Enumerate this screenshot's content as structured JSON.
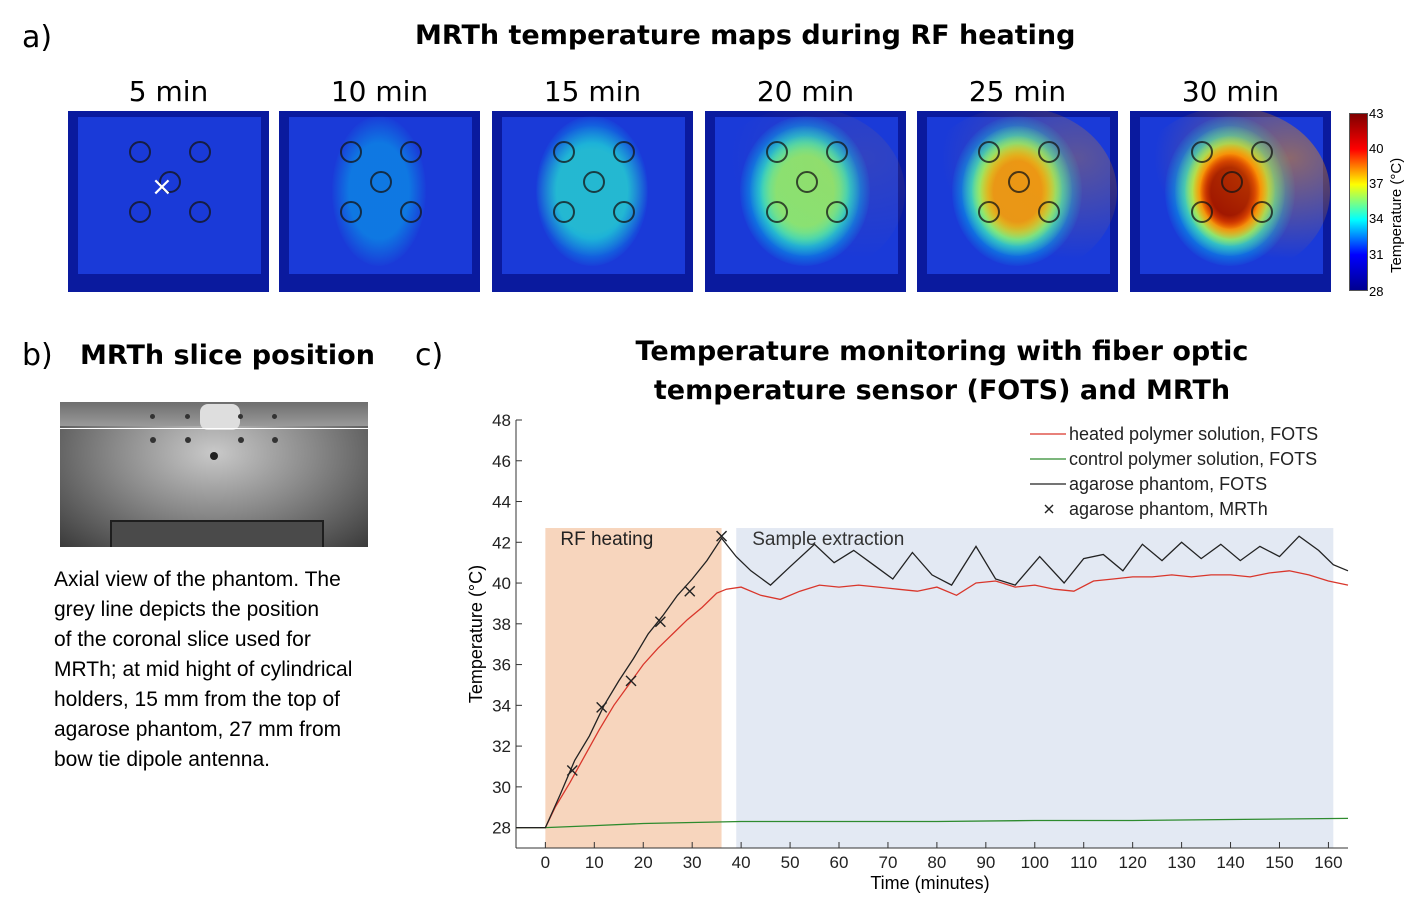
{
  "panel_a": {
    "letter": "a)",
    "title": "MRTh temperature maps during RF heating",
    "maps": [
      {
        "label": "5 min",
        "heat": 0.0
      },
      {
        "label": "10 min",
        "heat": 0.22
      },
      {
        "label": "15 min",
        "heat": 0.36
      },
      {
        "label": "20 min",
        "heat": 0.55
      },
      {
        "label": "25 min",
        "heat": 0.74
      },
      {
        "label": "30 min",
        "heat": 0.95
      }
    ],
    "marker": "×",
    "colorbar": {
      "label": "Temperature (°C)",
      "ticks": [
        "43",
        "40",
        "37",
        "34",
        "31",
        "28"
      ],
      "colors": [
        "#7f0000",
        "#ff0000",
        "#ffff00",
        "#00ffff",
        "#0000ff",
        "#00008f"
      ]
    }
  },
  "panel_b": {
    "letter": "b)",
    "title": "MRTh slice position",
    "description": [
      "Axial view of the phantom. The",
      "grey line depicts the position",
      "of the coronal slice used for",
      "MRTh; at mid hight of cylindrical",
      "holders, 15 mm from the top of",
      "agarose phantom, 27 mm from",
      "bow tie dipole antenna."
    ]
  },
  "panel_c": {
    "letter": "c)",
    "title_line1": "Temperature monitoring with fiber optic",
    "title_line2": "temperature sensor (FOTS) and MRTh"
  },
  "chart_data": {
    "type": "line",
    "title": "Temperature monitoring with fiber optic temperature sensor (FOTS) and MRTh",
    "xlabel": "Time (minutes)",
    "ylabel": "Temperature (°C)",
    "xlim": [
      -6,
      164
    ],
    "ylim": [
      27,
      48
    ],
    "xticks": [
      0,
      10,
      20,
      30,
      40,
      50,
      60,
      70,
      80,
      90,
      100,
      110,
      120,
      130,
      140,
      150,
      160
    ],
    "yticks": [
      28,
      30,
      32,
      34,
      36,
      38,
      40,
      42,
      44,
      46,
      48
    ],
    "regions": [
      {
        "label": "RF heating",
        "x0": 0,
        "x1": 36,
        "color": "#f7d5bd"
      },
      {
        "label": "Sample extraction",
        "x0": 39,
        "x1": 161,
        "color": "#e3e9f3"
      }
    ],
    "legend": {
      "position": "top-right",
      "entries": [
        "heated polymer solution, FOTS",
        "control polymer solution, FOTS",
        "agarose phantom, FOTS",
        "agarose phantom, MRTh"
      ]
    },
    "series": [
      {
        "name": "heated polymer solution, FOTS",
        "color": "#d9362b",
        "x": [
          -6,
          0,
          2,
          5,
          8,
          11,
          14,
          17,
          20,
          23,
          26,
          29,
          32,
          35,
          37,
          40,
          44,
          48,
          52,
          56,
          60,
          64,
          68,
          72,
          76,
          80,
          84,
          88,
          92,
          96,
          100,
          104,
          108,
          112,
          116,
          120,
          124,
          128,
          132,
          136,
          140,
          144,
          148,
          152,
          156,
          160,
          164
        ],
        "y": [
          28.0,
          28.0,
          29.0,
          30.2,
          31.5,
          32.8,
          34.0,
          35.0,
          36.0,
          36.8,
          37.5,
          38.2,
          38.8,
          39.5,
          39.7,
          39.8,
          39.4,
          39.2,
          39.6,
          39.9,
          39.8,
          39.9,
          39.8,
          39.7,
          39.6,
          39.8,
          39.4,
          40.0,
          40.1,
          39.8,
          39.9,
          39.7,
          39.6,
          40.1,
          40.2,
          40.3,
          40.3,
          40.4,
          40.3,
          40.4,
          40.4,
          40.3,
          40.5,
          40.6,
          40.4,
          40.1,
          39.9
        ]
      },
      {
        "name": "control polymer solution, FOTS",
        "color": "#2e8b2e",
        "x": [
          -6,
          0,
          10,
          20,
          30,
          40,
          60,
          80,
          100,
          120,
          140,
          164
        ],
        "y": [
          28.0,
          28.0,
          28.1,
          28.2,
          28.25,
          28.3,
          28.3,
          28.3,
          28.35,
          28.35,
          28.4,
          28.45
        ]
      },
      {
        "name": "agarose phantom, FOTS",
        "color": "#222222",
        "x": [
          -6,
          0,
          3,
          6,
          9,
          12,
          15,
          18,
          21,
          24,
          27,
          30,
          33,
          36,
          39,
          42,
          46,
          50,
          55,
          59,
          63,
          67,
          71,
          75,
          79,
          83,
          88,
          92,
          96,
          101,
          106,
          110,
          114,
          118,
          122,
          126,
          130,
          134,
          138,
          142,
          146,
          150,
          154,
          158,
          161,
          164
        ],
        "y": [
          28.0,
          28.0,
          29.6,
          31.3,
          32.5,
          34.0,
          35.2,
          36.3,
          37.5,
          38.4,
          39.4,
          40.2,
          41.1,
          42.2,
          41.3,
          40.6,
          39.9,
          40.8,
          41.9,
          41.0,
          41.6,
          40.9,
          40.2,
          41.5,
          40.4,
          39.9,
          41.8,
          40.2,
          39.9,
          41.3,
          40.0,
          41.2,
          41.4,
          40.6,
          41.9,
          41.1,
          42.0,
          41.2,
          41.9,
          41.1,
          41.8,
          41.3,
          42.3,
          41.6,
          40.9,
          40.6
        ]
      },
      {
        "name": "agarose phantom, MRTh",
        "color": "#222222",
        "marker": "x",
        "x": [
          5.5,
          11.5,
          17.5,
          23.5,
          29.5,
          36
        ],
        "y": [
          30.8,
          33.9,
          35.2,
          38.1,
          39.6,
          42.3
        ]
      }
    ]
  }
}
